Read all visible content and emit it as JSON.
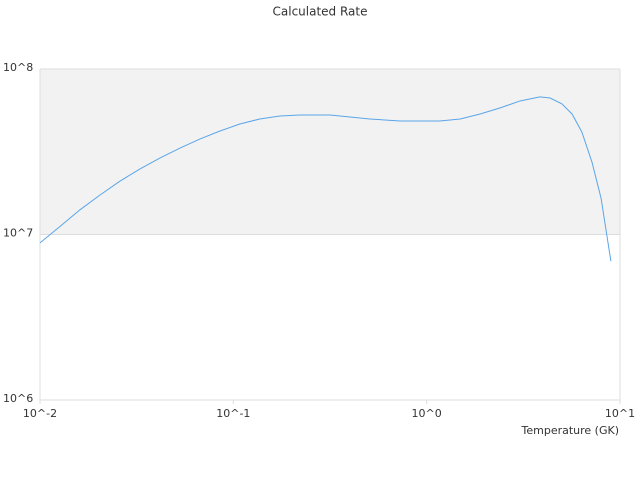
{
  "chart_data": {
    "type": "line",
    "title": "Calculated Rate",
    "x_label": "Temperature (GK)",
    "xscale": "log",
    "yscale": "log",
    "grid_bands": true,
    "xlim": [
      0.01,
      10
    ],
    "ylim": [
      1000000,
      100000000
    ],
    "xticks": [
      {
        "value": 0.01,
        "label": "10^-2"
      },
      {
        "value": 0.1,
        "label": "10^-1"
      },
      {
        "value": 1,
        "label": "10^0"
      },
      {
        "value": 10,
        "label": "10^1"
      }
    ],
    "yticks": [
      {
        "value": 1000000,
        "label": "10^6"
      },
      {
        "value": 10000000,
        "label": "10^7"
      },
      {
        "value": 100000000,
        "label": "10^8"
      }
    ],
    "series": [
      {
        "color": "#5aa5e8",
        "x": [
          0.01,
          0.0127,
          0.0161,
          0.0204,
          0.0259,
          0.0329,
          0.0418,
          0.053,
          0.0673,
          0.0853,
          0.108,
          0.137,
          0.174,
          0.221,
          0.316,
          0.401,
          0.509,
          0.728,
          1.17,
          1.49,
          1.89,
          2.39,
          3.04,
          3.85,
          4.35,
          5.01,
          5.65,
          6.35,
          7.16,
          7.98,
          8.97
        ],
        "values": [
          8900000,
          11200000,
          14100000,
          17300000,
          21000000,
          24900000,
          29000000,
          33300000,
          37800000,
          42200000,
          46500000,
          49900000,
          52000000,
          52700000,
          52700000,
          51300000,
          49900000,
          48500000,
          48500000,
          49900000,
          53500000,
          58100000,
          64100000,
          67800000,
          66800000,
          61500000,
          53500000,
          41600000,
          27400000,
          16600000,
          6900000
        ]
      }
    ]
  }
}
